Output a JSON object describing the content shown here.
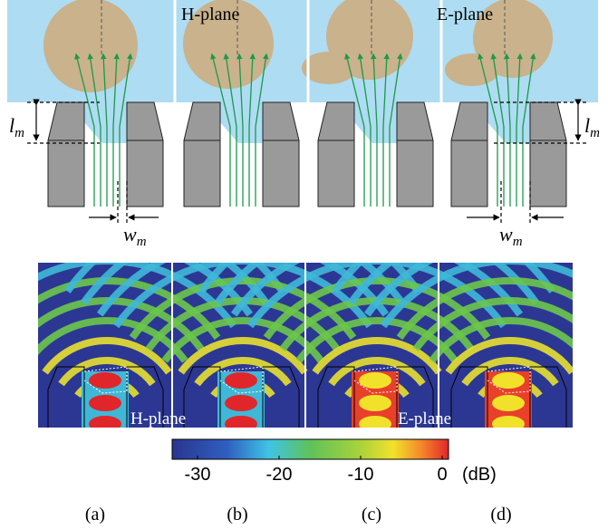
{
  "top_labels": [
    "H-plane",
    "E-plane"
  ],
  "dimensions": {
    "l_m": {
      "symbol": "l",
      "subscript": "m"
    },
    "w_m": {
      "symbol": "w",
      "subscript": "m"
    }
  },
  "bottom_labels": [
    "H-plane",
    "E-plane"
  ],
  "colorbar": {
    "ticks": [
      -30,
      -20,
      -10,
      0
    ],
    "unit": "(dB)"
  },
  "panels": [
    "(a)",
    "(b)",
    "(c)",
    "(d)"
  ]
}
